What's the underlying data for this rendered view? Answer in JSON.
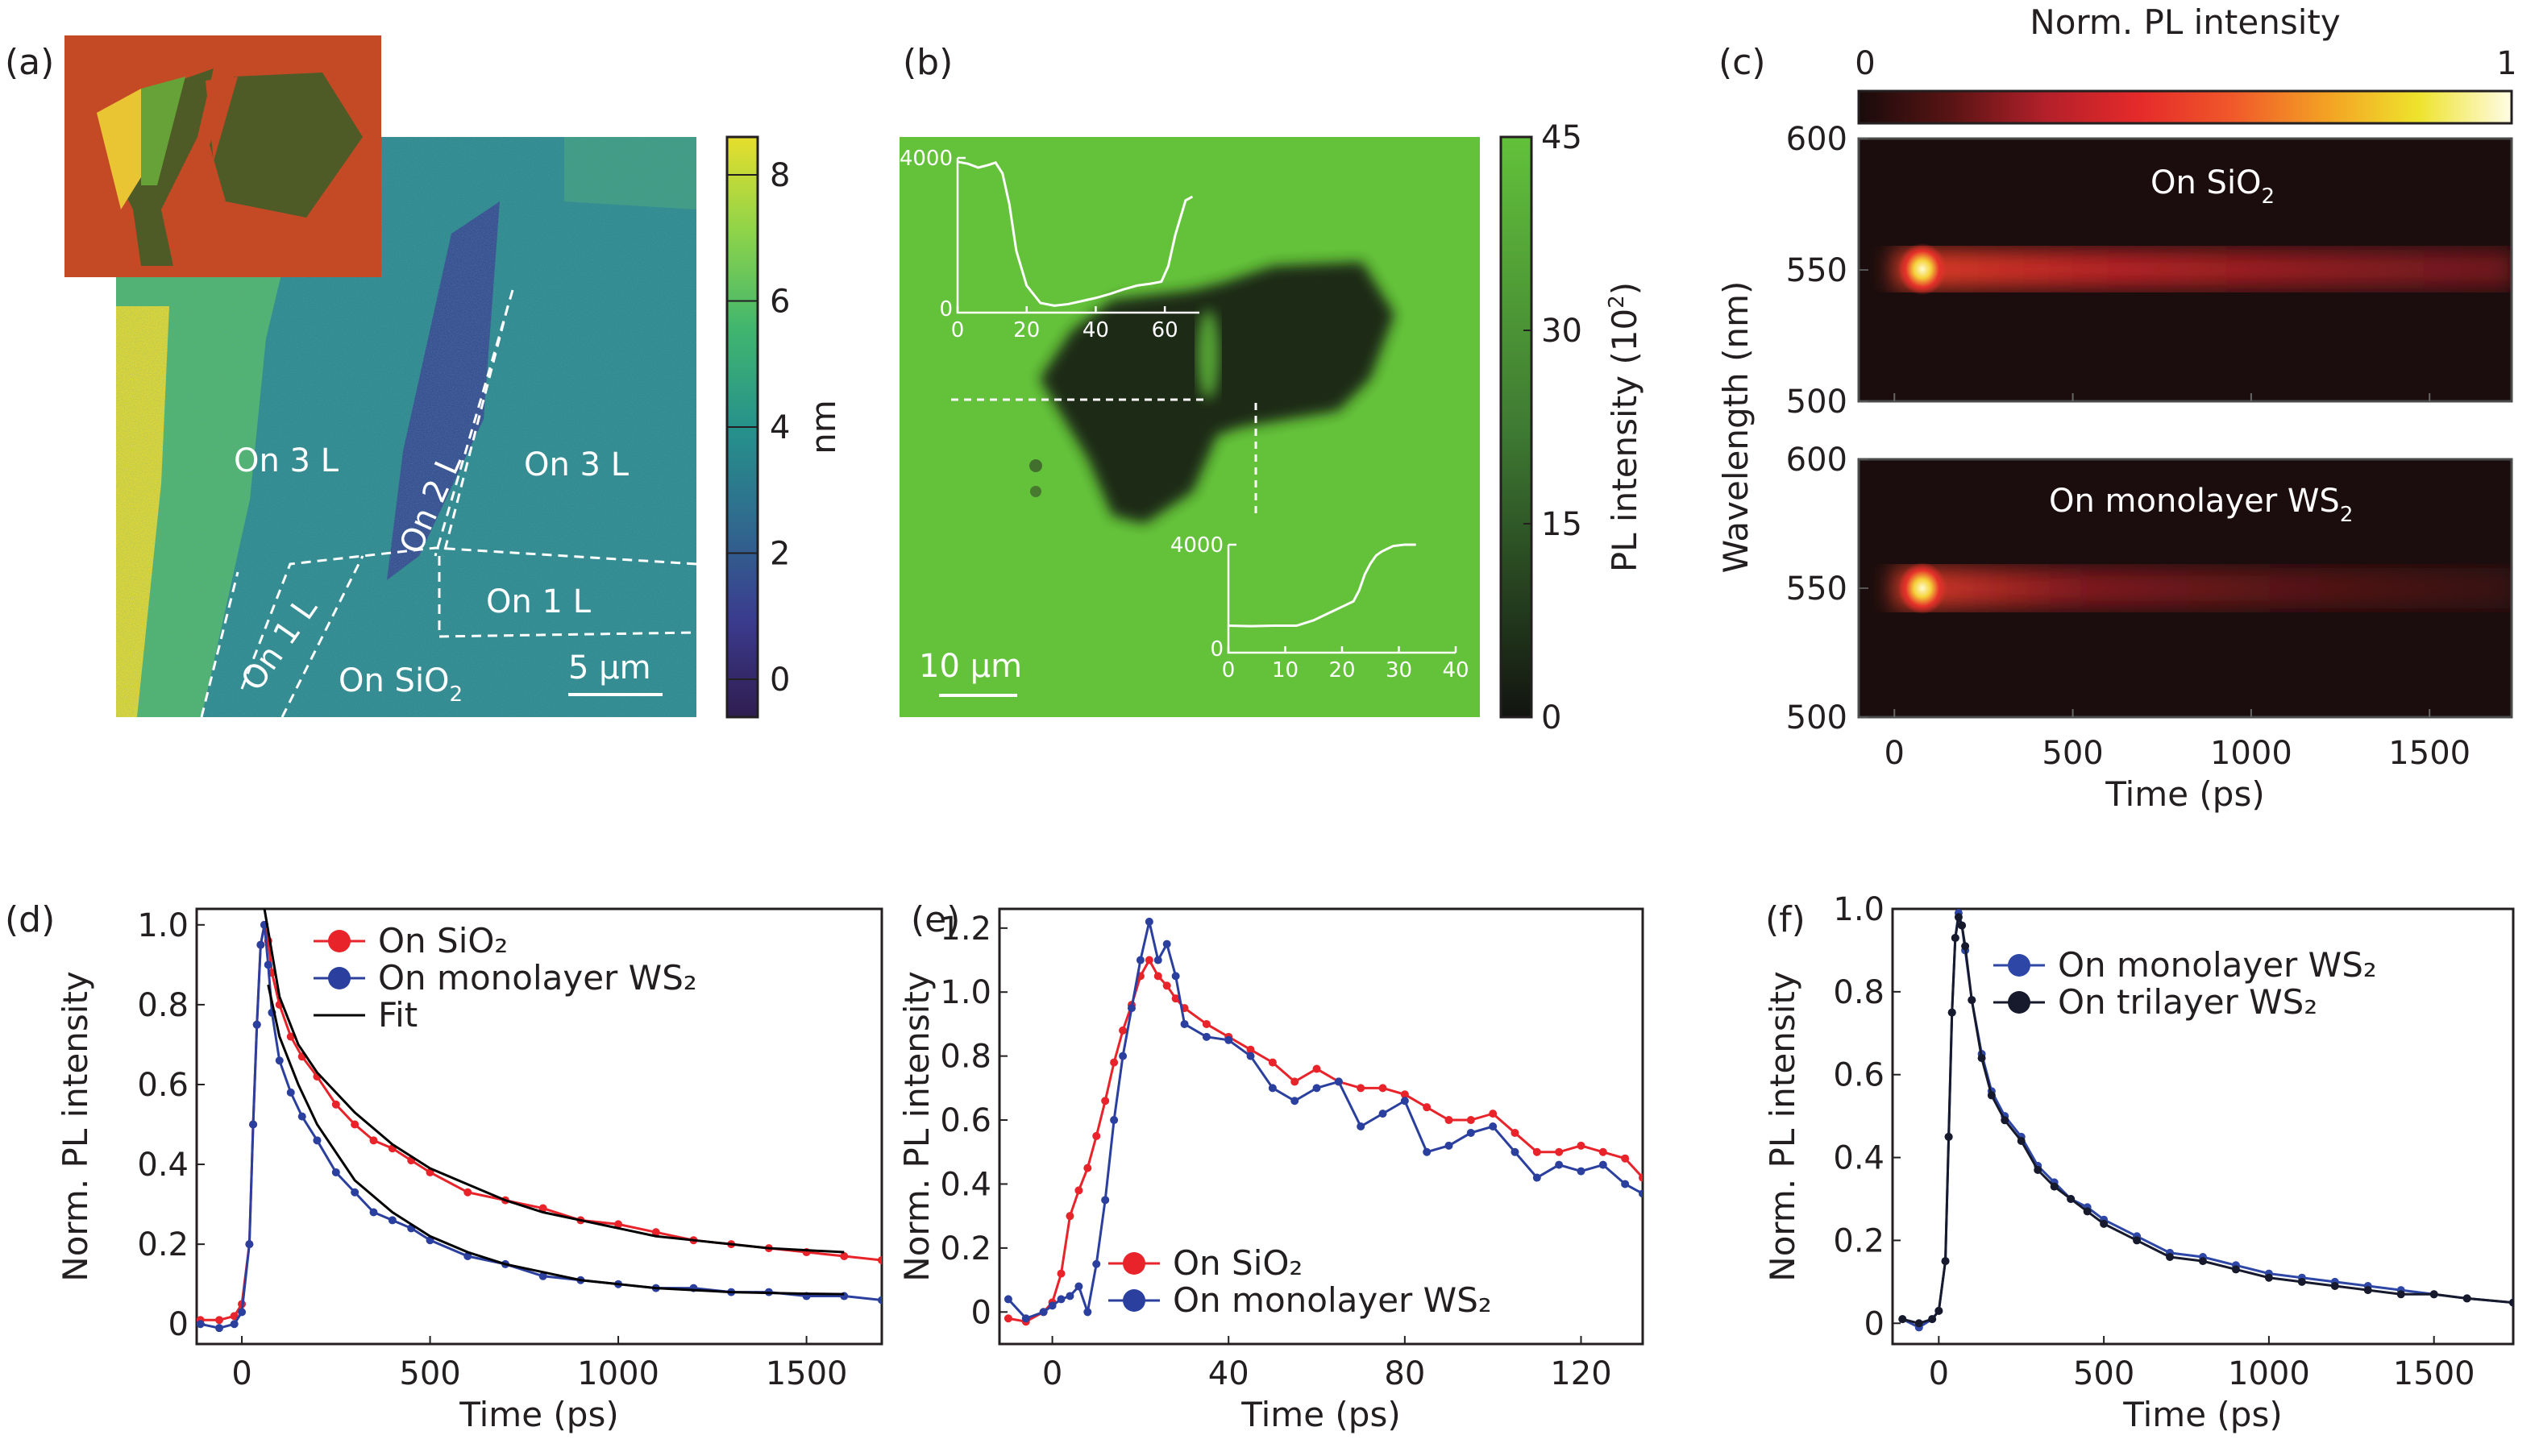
{
  "panels": {
    "a": {
      "label": "(a)",
      "colorbar": {
        "unit": "nm",
        "ticks": [
          "8",
          "6",
          "4",
          "2",
          "0"
        ],
        "range": [
          -0.6,
          8.6
        ],
        "colors": [
          "#2f1d4f",
          "#3b3b8e",
          "#2f6a8e",
          "#26928b",
          "#3fb56f",
          "#8cd34a",
          "#e6de2d"
        ]
      },
      "regions": [
        "On 3 L",
        "On 2 L",
        "On 3 L",
        "On 1 L",
        "On 1 L",
        "On SiO",
        "2"
      ],
      "scale_bar": "5 µm"
    },
    "b": {
      "label": "(b)",
      "colorbar": {
        "title": "PL intensity (10",
        "title_sup": "2",
        "title_end": ")",
        "ticks": [
          "45",
          "30",
          "15",
          "0"
        ],
        "range": [
          0,
          45
        ],
        "colors": [
          "#121410",
          "#3f7b33",
          "#62c13a"
        ]
      },
      "scale_bar": "10 µm",
      "inset_top": {
        "y_ticks": [
          "4000",
          "0"
        ],
        "x_ticks": [
          "0",
          "20",
          "40",
          "60"
        ],
        "x": [
          0,
          3,
          6,
          9,
          11,
          13,
          15,
          17,
          20,
          24,
          28,
          32,
          36,
          40,
          44,
          48,
          52,
          56,
          59,
          61,
          63,
          66,
          68
        ],
        "y": [
          3900,
          3850,
          3750,
          3820,
          3880,
          3600,
          2800,
          1600,
          700,
          250,
          180,
          220,
          300,
          380,
          480,
          600,
          700,
          750,
          800,
          1200,
          2000,
          2900,
          3000
        ]
      },
      "inset_bottom": {
        "y_ticks": [
          "4000",
          "0"
        ],
        "x_ticks": [
          "0",
          "10",
          "20",
          "30",
          "40"
        ],
        "x": [
          0,
          4,
          8,
          12,
          15,
          18,
          20,
          22,
          23,
          24,
          25,
          26,
          27,
          28,
          29,
          31,
          33
        ],
        "y": [
          1000,
          980,
          1000,
          1000,
          1200,
          1500,
          1700,
          1900,
          2300,
          2900,
          3300,
          3600,
          3750,
          3850,
          3950,
          4000,
          4000
        ]
      }
    },
    "c": {
      "label": "(c)",
      "colorbar": {
        "title": "Norm. PL intensity",
        "min_label": "0",
        "max_label": "1",
        "colors": [
          "#1a0b0b",
          "#5a1414",
          "#b3202a",
          "#e52a2a",
          "#f0582a",
          "#f3a024",
          "#eee32c",
          "#fffce6"
        ]
      },
      "top_label": "On SiO",
      "top_sub": "2",
      "bottom_label": "On monolayer WS",
      "bottom_sub": "2",
      "y_ticks": [
        "600",
        "550",
        "500"
      ],
      "x_ticks": [
        "0",
        "500",
        "1000",
        "1500"
      ],
      "ylabel": "Wavelength (nm)",
      "xlabel": "Time (ps)"
    }
  },
  "chart_data": [
    {
      "id": "d",
      "label": "(d)",
      "type": "line",
      "xlabel": "Time (ps)",
      "ylabel": "Norm. PL intensity",
      "xlim": [
        -120,
        1700
      ],
      "ylim": [
        -0.05,
        1.04
      ],
      "x_ticks": [
        0,
        500,
        1000,
        1500
      ],
      "x_tick_labels": [
        "0",
        "500",
        "1000",
        "1500"
      ],
      "y_ticks": [
        0,
        0.2,
        0.4,
        0.6,
        0.8,
        1.0
      ],
      "y_tick_labels": [
        "0",
        "0.2",
        "0.4",
        "0.6",
        "0.8",
        "1.0"
      ],
      "legend": [
        "On SiO₂",
        "On monolayer WS₂",
        "Fit"
      ],
      "legend_position": "top-right",
      "series": [
        {
          "name": "On SiO2",
          "color": "#e8232a",
          "x": [
            -110,
            -60,
            -20,
            0,
            20,
            30,
            40,
            50,
            60,
            70,
            80,
            100,
            130,
            160,
            200,
            250,
            300,
            350,
            400,
            450,
            500,
            600,
            700,
            800,
            900,
            1000,
            1100,
            1200,
            1300,
            1400,
            1500,
            1600,
            1700
          ],
          "y": [
            0.01,
            0.01,
            0.02,
            0.05,
            0.2,
            0.5,
            0.75,
            0.95,
            1.0,
            0.96,
            0.88,
            0.8,
            0.72,
            0.67,
            0.62,
            0.55,
            0.5,
            0.46,
            0.44,
            0.41,
            0.38,
            0.33,
            0.31,
            0.29,
            0.26,
            0.25,
            0.23,
            0.21,
            0.2,
            0.19,
            0.18,
            0.17,
            0.16
          ]
        },
        {
          "name": "On monolayer WS2",
          "color": "#2b3f9e",
          "x": [
            -110,
            -60,
            -20,
            0,
            20,
            30,
            40,
            50,
            60,
            70,
            80,
            100,
            130,
            160,
            200,
            250,
            300,
            350,
            400,
            450,
            500,
            600,
            700,
            800,
            900,
            1000,
            1100,
            1200,
            1300,
            1400,
            1500,
            1600,
            1700
          ],
          "y": [
            0.0,
            -0.01,
            0.0,
            0.03,
            0.2,
            0.5,
            0.75,
            0.95,
            1.0,
            0.9,
            0.78,
            0.66,
            0.58,
            0.52,
            0.46,
            0.38,
            0.33,
            0.28,
            0.26,
            0.24,
            0.21,
            0.17,
            0.15,
            0.12,
            0.11,
            0.1,
            0.09,
            0.09,
            0.08,
            0.08,
            0.07,
            0.07,
            0.06
          ]
        },
        {
          "name": "Fit SiO2",
          "color": "#000000",
          "x": [
            60,
            100,
            150,
            200,
            300,
            400,
            500,
            600,
            700,
            800,
            900,
            1000,
            1100,
            1200,
            1300,
            1400,
            1500,
            1600
          ],
          "y": [
            1.04,
            0.82,
            0.7,
            0.63,
            0.53,
            0.45,
            0.39,
            0.35,
            0.31,
            0.28,
            0.26,
            0.24,
            0.22,
            0.21,
            0.2,
            0.19,
            0.185,
            0.18
          ]
        },
        {
          "name": "Fit WS2",
          "color": "#000000",
          "x": [
            70,
            100,
            150,
            200,
            300,
            400,
            500,
            600,
            700,
            800,
            900,
            1000,
            1100,
            1200,
            1300,
            1400,
            1500,
            1600
          ],
          "y": [
            0.85,
            0.72,
            0.6,
            0.5,
            0.36,
            0.28,
            0.22,
            0.18,
            0.15,
            0.13,
            0.11,
            0.1,
            0.09,
            0.085,
            0.08,
            0.078,
            0.076,
            0.075
          ]
        }
      ]
    },
    {
      "id": "e",
      "label": "(e)",
      "type": "line",
      "xlabel": "Time (ps)",
      "ylabel": "Norm. PL intensity",
      "xlim": [
        -12,
        134
      ],
      "ylim": [
        -0.1,
        1.26
      ],
      "x_ticks": [
        0,
        40,
        80,
        120
      ],
      "x_tick_labels": [
        "0",
        "40",
        "80",
        "120"
      ],
      "y_ticks": [
        0,
        0.2,
        0.4,
        0.6,
        0.8,
        1.0,
        1.2
      ],
      "y_tick_labels": [
        "0",
        "0.2",
        "0.4",
        "0.6",
        "0.8",
        "1.0",
        "1.2"
      ],
      "legend": [
        "On SiO₂",
        "On monolayer WS₂"
      ],
      "legend_position": "bottom-right",
      "series": [
        {
          "name": "On SiO2",
          "color": "#e8232a",
          "x": [
            -10,
            -6,
            -2,
            0,
            2,
            4,
            6,
            8,
            10,
            12,
            14,
            16,
            18,
            20,
            22,
            24,
            26,
            28,
            30,
            35,
            40,
            45,
            50,
            55,
            60,
            65,
            70,
            75,
            80,
            85,
            90,
            95,
            100,
            105,
            110,
            115,
            120,
            125,
            130,
            134
          ],
          "y": [
            -0.02,
            -0.03,
            0.0,
            0.03,
            0.12,
            0.3,
            0.38,
            0.45,
            0.55,
            0.66,
            0.78,
            0.88,
            0.96,
            1.05,
            1.1,
            1.05,
            1.02,
            0.98,
            0.95,
            0.9,
            0.86,
            0.82,
            0.78,
            0.72,
            0.76,
            0.72,
            0.7,
            0.7,
            0.68,
            0.64,
            0.6,
            0.6,
            0.62,
            0.56,
            0.5,
            0.5,
            0.52,
            0.5,
            0.48,
            0.42
          ]
        },
        {
          "name": "On monolayer WS2",
          "color": "#2b3f9e",
          "x": [
            -10,
            -6,
            -2,
            0,
            2,
            4,
            6,
            8,
            10,
            12,
            14,
            16,
            18,
            20,
            22,
            24,
            26,
            28,
            30,
            35,
            40,
            45,
            50,
            55,
            60,
            65,
            70,
            75,
            80,
            85,
            90,
            95,
            100,
            105,
            110,
            115,
            120,
            125,
            130,
            134
          ],
          "y": [
            0.04,
            -0.02,
            0.0,
            0.02,
            0.04,
            0.05,
            0.08,
            0.0,
            0.15,
            0.35,
            0.6,
            0.8,
            0.95,
            1.1,
            1.22,
            1.1,
            1.15,
            1.05,
            0.9,
            0.86,
            0.85,
            0.8,
            0.7,
            0.66,
            0.7,
            0.72,
            0.58,
            0.62,
            0.66,
            0.5,
            0.52,
            0.56,
            0.58,
            0.5,
            0.42,
            0.46,
            0.44,
            0.46,
            0.4,
            0.37
          ]
        }
      ]
    },
    {
      "id": "f",
      "label": "(f)",
      "type": "line",
      "xlabel": "Time (ps)",
      "ylabel": "Norm. PL intensity",
      "xlim": [
        -140,
        1740
      ],
      "ylim": [
        -0.05,
        1.0
      ],
      "x_ticks": [
        0,
        500,
        1000,
        1500
      ],
      "x_tick_labels": [
        "0",
        "500",
        "1000",
        "1500"
      ],
      "y_ticks": [
        0,
        0.2,
        0.4,
        0.6,
        0.8,
        1.0
      ],
      "y_tick_labels": [
        "0",
        "0.2",
        "0.4",
        "0.6",
        "0.8",
        "1.0"
      ],
      "legend": [
        "On monolayer WS₂",
        "On trilayer WS₂"
      ],
      "legend_position": "top-right",
      "series": [
        {
          "name": "On monolayer WS2",
          "color": "#2e47a6",
          "x": [
            -110,
            -60,
            -20,
            0,
            20,
            30,
            40,
            50,
            60,
            70,
            80,
            100,
            130,
            160,
            200,
            250,
            300,
            350,
            400,
            450,
            500,
            600,
            700,
            800,
            900,
            1000,
            1100,
            1200,
            1300,
            1400,
            1500,
            1600,
            1740
          ],
          "y": [
            0.01,
            -0.01,
            0.01,
            0.03,
            0.15,
            0.45,
            0.75,
            0.93,
            0.99,
            0.96,
            0.9,
            0.78,
            0.65,
            0.56,
            0.5,
            0.45,
            0.38,
            0.34,
            0.3,
            0.28,
            0.25,
            0.21,
            0.17,
            0.16,
            0.14,
            0.12,
            0.11,
            0.1,
            0.09,
            0.08,
            0.07,
            0.06,
            0.05
          ]
        },
        {
          "name": "On trilayer WS2",
          "color": "#161a2c",
          "x": [
            -110,
            -60,
            -20,
            0,
            20,
            30,
            40,
            50,
            60,
            70,
            80,
            100,
            130,
            160,
            200,
            250,
            300,
            350,
            400,
            450,
            500,
            600,
            700,
            800,
            900,
            1000,
            1100,
            1200,
            1300,
            1400,
            1500,
            1600,
            1740
          ],
          "y": [
            0.01,
            0.0,
            0.01,
            0.03,
            0.15,
            0.45,
            0.75,
            0.93,
            0.98,
            0.96,
            0.91,
            0.78,
            0.64,
            0.55,
            0.49,
            0.44,
            0.37,
            0.33,
            0.3,
            0.27,
            0.24,
            0.2,
            0.16,
            0.15,
            0.13,
            0.11,
            0.1,
            0.09,
            0.08,
            0.07,
            0.07,
            0.06,
            0.05
          ]
        }
      ]
    }
  ]
}
